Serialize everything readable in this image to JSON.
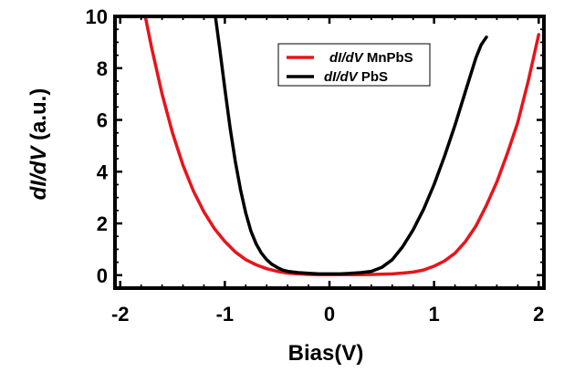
{
  "chart_data": {
    "type": "line",
    "title": "",
    "xlabel": "Bias(V)",
    "ylabel_italic": "dI/dV",
    "ylabel_suffix": " (a.u.)",
    "xlim": [
      -2.05,
      2.05
    ],
    "ylim": [
      -0.5,
      10
    ],
    "xticks": [
      -2,
      -1,
      0,
      1,
      2
    ],
    "xtick_labels": [
      "-2",
      "-1",
      "0",
      "1",
      "2"
    ],
    "yticks": [
      0,
      2,
      4,
      6,
      8,
      10
    ],
    "ytick_labels": [
      "0",
      "2",
      "4",
      "6",
      "8",
      "10"
    ],
    "grid": false,
    "legend_position": "top-right",
    "series": [
      {
        "name_italic": "dI/dV",
        "name_suffix": " MnPbS",
        "color": "#e8141b",
        "x": [
          -1.76,
          -1.7,
          -1.6,
          -1.5,
          -1.4,
          -1.3,
          -1.2,
          -1.1,
          -1.0,
          -0.9,
          -0.8,
          -0.7,
          -0.6,
          -0.5,
          -0.4,
          -0.3,
          -0.2,
          -0.1,
          0.0,
          0.1,
          0.2,
          0.3,
          0.4,
          0.5,
          0.6,
          0.7,
          0.8,
          0.9,
          1.0,
          1.1,
          1.2,
          1.3,
          1.4,
          1.5,
          1.6,
          1.7,
          1.8,
          1.9,
          2.0
        ],
        "y": [
          10.0,
          8.8,
          7.0,
          5.5,
          4.25,
          3.25,
          2.45,
          1.8,
          1.3,
          0.9,
          0.6,
          0.4,
          0.25,
          0.15,
          0.08,
          0.05,
          0.03,
          0.02,
          0.02,
          0.02,
          0.02,
          0.02,
          0.03,
          0.04,
          0.05,
          0.08,
          0.12,
          0.2,
          0.35,
          0.55,
          0.85,
          1.3,
          1.9,
          2.7,
          3.6,
          4.7,
          5.9,
          7.5,
          9.3
        ]
      },
      {
        "name_italic": "dI/dV",
        "name_suffix": " PbS",
        "color": "#000000",
        "x": [
          -1.09,
          -1.05,
          -1.0,
          -0.95,
          -0.9,
          -0.85,
          -0.8,
          -0.75,
          -0.7,
          -0.65,
          -0.6,
          -0.55,
          -0.5,
          -0.45,
          -0.4,
          -0.3,
          -0.2,
          -0.1,
          0.0,
          0.1,
          0.2,
          0.3,
          0.4,
          0.5,
          0.6,
          0.7,
          0.8,
          0.9,
          1.0,
          1.1,
          1.2,
          1.3,
          1.4,
          1.45,
          1.5
        ],
        "y": [
          10.0,
          8.8,
          7.2,
          5.7,
          4.4,
          3.3,
          2.4,
          1.7,
          1.2,
          0.85,
          0.6,
          0.42,
          0.3,
          0.2,
          0.15,
          0.1,
          0.07,
          0.05,
          0.05,
          0.05,
          0.07,
          0.1,
          0.15,
          0.3,
          0.6,
          1.1,
          1.75,
          2.55,
          3.5,
          4.6,
          5.8,
          7.1,
          8.4,
          8.9,
          9.2
        ]
      }
    ]
  }
}
